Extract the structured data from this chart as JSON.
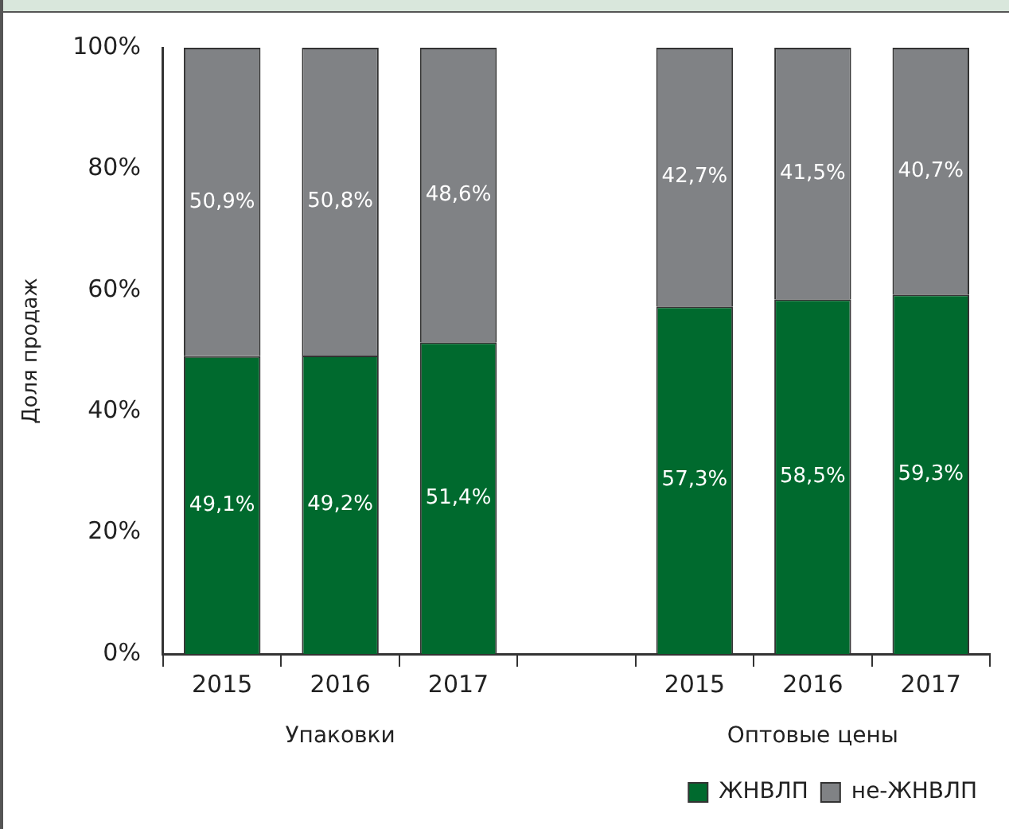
{
  "chart_data": {
    "type": "bar",
    "stacked": true,
    "ylabel": "Доля продаж",
    "categories": [
      "2015",
      "2016",
      "2017",
      null,
      "2015",
      "2016",
      "2017"
    ],
    "series": [
      {
        "name": "ЖНВЛП",
        "color": "#006a2e",
        "values": [
          49.1,
          49.2,
          51.4,
          null,
          57.3,
          58.5,
          59.3
        ],
        "value_labels": [
          "49,1%",
          "49,2%",
          "51,4%",
          null,
          "57,3%",
          "58,5%",
          "59,3%"
        ]
      },
      {
        "name": "не-ЖНВЛП",
        "color": "#808285",
        "values": [
          50.9,
          50.8,
          48.6,
          null,
          42.7,
          41.5,
          40.7
        ],
        "value_labels": [
          "50,9%",
          "50,8%",
          "48,6%",
          null,
          "42,7%",
          "41,5%",
          "40,7%"
        ]
      }
    ],
    "ylim": [
      0,
      100
    ],
    "yticks": [
      {
        "value": 0,
        "label": "0%"
      },
      {
        "value": 20,
        "label": "20%"
      },
      {
        "value": 40,
        "label": "40%"
      },
      {
        "value": 60,
        "label": "60%"
      },
      {
        "value": 80,
        "label": "80%"
      },
      {
        "value": 100,
        "label": "100%"
      }
    ],
    "annotations": [
      "Упаковки",
      "Оптовые цены"
    ],
    "grid": false,
    "legend": "bottom right"
  }
}
